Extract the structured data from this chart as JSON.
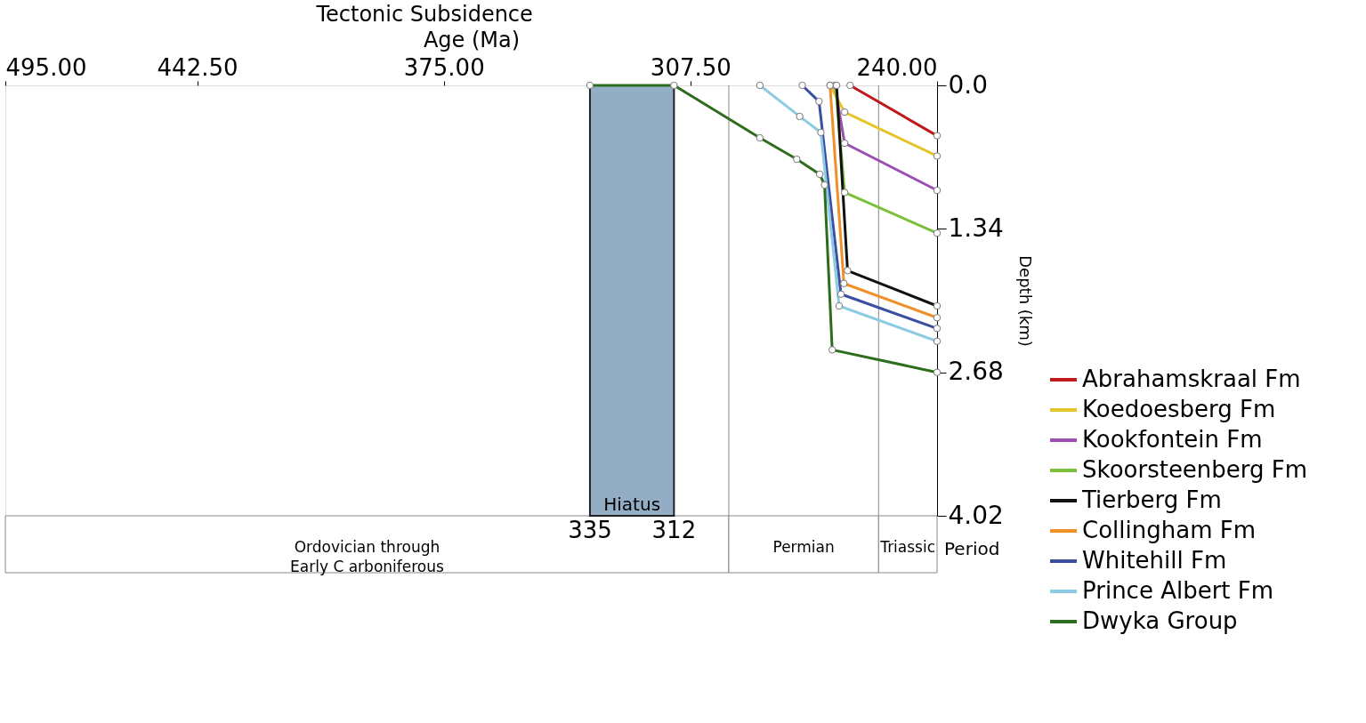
{
  "chart_data": {
    "type": "line",
    "title": "Tectonic Subsidence",
    "xlabel": "Age (Ma)",
    "ylabel": "Depth (km)",
    "xlim": [
      495,
      240
    ],
    "xticks": [
      {
        "value": 495,
        "label": "495.00"
      },
      {
        "value": 442.5,
        "label": "442.50"
      },
      {
        "value": 375,
        "label": "375.00"
      },
      {
        "value": 307.5,
        "label": "307.50"
      },
      {
        "value": 240,
        "label": "240.00"
      }
    ],
    "ylim": [
      4.02,
      0
    ],
    "yticks": [
      {
        "value": 0,
        "label": "0.0"
      },
      1.34,
      2.68,
      4.02
    ],
    "grid": false,
    "legend": "right",
    "marker": "circle",
    "line_style": "solid",
    "series": [
      {
        "name": "Abrahamskraal Fm",
        "color": "#c0191c",
        "x": [
          263.8,
          240
        ],
        "values": [
          0,
          0.47
        ]
      },
      {
        "name": "Koedoesberg Fm",
        "color": "#e6c52a",
        "x": [
          269.3,
          265.3,
          240
        ],
        "values": [
          0,
          0.25,
          0.66
        ]
      },
      {
        "name": "Kookfontein Fm",
        "color": "#9b4fb4",
        "x": [
          268.0,
          265.3,
          240
        ],
        "values": [
          0,
          0.54,
          0.98
        ]
      },
      {
        "name": "Skoorsteenberg Fm",
        "color": "#7cbf3a",
        "x": [
          267.8,
          265.3,
          240
        ],
        "values": [
          0,
          1.0,
          1.38
        ]
      },
      {
        "name": "Tierberg Fm",
        "color": "#111111",
        "x": [
          267.5,
          264.5,
          240
        ],
        "values": [
          0,
          1.73,
          2.06
        ]
      },
      {
        "name": "Collingham Fm",
        "color": "#f0902a",
        "x": [
          269.3,
          265.5,
          240
        ],
        "values": [
          0,
          1.85,
          2.17
        ]
      },
      {
        "name": "Whitehill Fm",
        "color": "#3a4fa0",
        "x": [
          276.9,
          272.3,
          266.3,
          240
        ],
        "values": [
          0,
          0.15,
          1.95,
          2.27
        ]
      },
      {
        "name": "Prince Albert Fm",
        "color": "#8ccbe3",
        "x": [
          288.5,
          277.6,
          271.8,
          266.8,
          240
        ],
        "values": [
          0,
          0.29,
          0.44,
          2.06,
          2.39
        ]
      },
      {
        "name": "Dwyka Group",
        "color": "#2d6e1e",
        "x": [
          335,
          312,
          288.5,
          278.4,
          272.1,
          270.8,
          268.7,
          240
        ],
        "values": [
          0,
          0,
          0.49,
          0.69,
          0.83,
          0.93,
          2.47,
          2.68
        ]
      }
    ],
    "bands": [
      {
        "axis": "x",
        "from": 335,
        "to": 312,
        "label": "Hiatus",
        "color": "#93adc4"
      }
    ],
    "ref_lines": [
      {
        "axis": "x",
        "value": 297,
        "color": "#888888"
      },
      {
        "axis": "x",
        "value": 256,
        "color": "#888888"
      }
    ],
    "annotations": [
      "Ordovician through\nEarly C arboniferous",
      "Permian",
      "Triassic",
      "Period",
      "335",
      "312"
    ]
  }
}
